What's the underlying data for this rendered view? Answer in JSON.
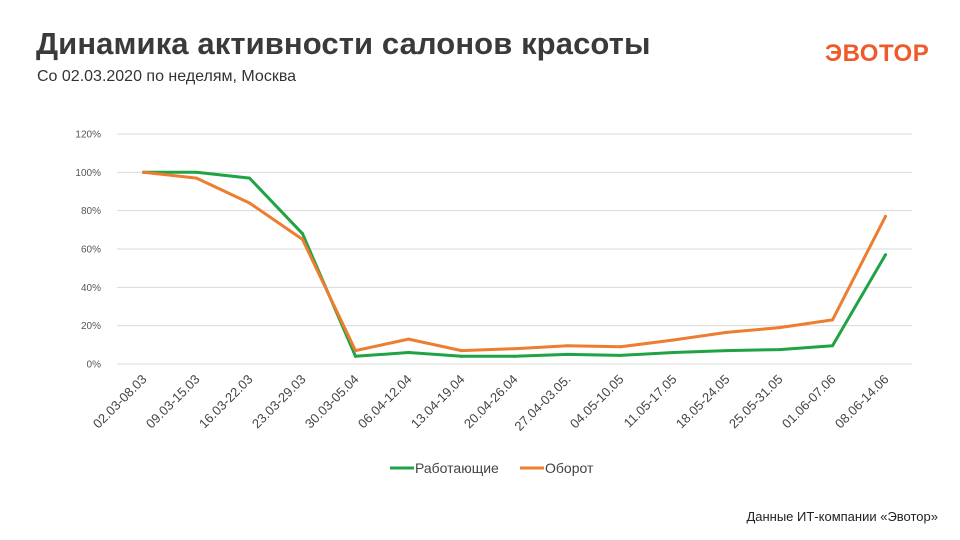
{
  "header": {
    "title": "Динамика активности салонов красоты",
    "subtitle": "Со 02.03.2020 по неделям, Москва"
  },
  "logo": {
    "text": "ЭВОТОР",
    "color": "#ef5a29"
  },
  "footer": {
    "source": "Данные ИТ-компании «Эвотор»"
  },
  "chart_data": {
    "type": "line",
    "title": "Динамика активности салонов красоты",
    "xlabel": "",
    "ylabel": "",
    "ylim": [
      0,
      120
    ],
    "y_ticks": [
      "0%",
      "20%",
      "40%",
      "60%",
      "80%",
      "100%",
      "120%"
    ],
    "grid": true,
    "legend": "bottom",
    "categories": [
      "02.03-08.03",
      "09.03-15.03",
      "16.03-22.03",
      "23.03-29.03",
      "30.03-05.04",
      "06.04-12.04",
      "13.04-19.04",
      "20.04-26.04",
      "27.04-03.05.",
      "04.05-10.05",
      "11.05-17.05",
      "18.05-24.05",
      "25.05-31.05",
      "01.06-07.06",
      "08.06-14.06"
    ],
    "series": [
      {
        "name": "Работающие",
        "color": "#1fa345",
        "values": [
          100,
          100,
          97,
          68,
          4,
          6,
          4,
          4,
          5,
          4.5,
          6,
          7,
          7.5,
          9.5,
          57
        ]
      },
      {
        "name": "Оборот",
        "color": "#ed7d31",
        "values": [
          100,
          97,
          84,
          65,
          7,
          13,
          7,
          8,
          9.5,
          9,
          12.5,
          16.5,
          19,
          23,
          77
        ]
      }
    ]
  }
}
